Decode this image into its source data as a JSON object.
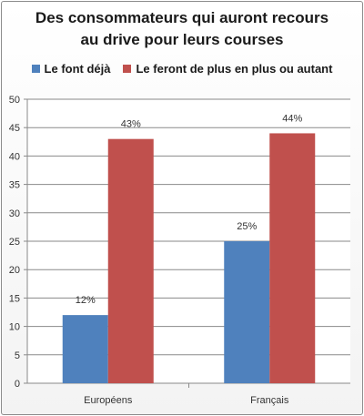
{
  "chart_data": {
    "type": "bar",
    "title": [
      "Des consommateurs qui auront recours",
      "au drive pour leurs courses"
    ],
    "categories": [
      "Européens",
      "Français"
    ],
    "series": [
      {
        "name": "Le font déjà",
        "values": [
          12,
          25
        ],
        "labels": [
          "12%",
          "25%"
        ],
        "color": "#4f81bd"
      },
      {
        "name": "Le feront de plus en plus ou autant",
        "values": [
          43,
          44
        ],
        "labels": [
          "43%",
          "44%"
        ],
        "color": "#c0504d"
      }
    ],
    "ylim": [
      0,
      50
    ],
    "yticks": [
      0,
      5,
      10,
      15,
      20,
      25,
      30,
      35,
      40,
      45,
      50
    ],
    "grid": true,
    "legend": "top"
  }
}
